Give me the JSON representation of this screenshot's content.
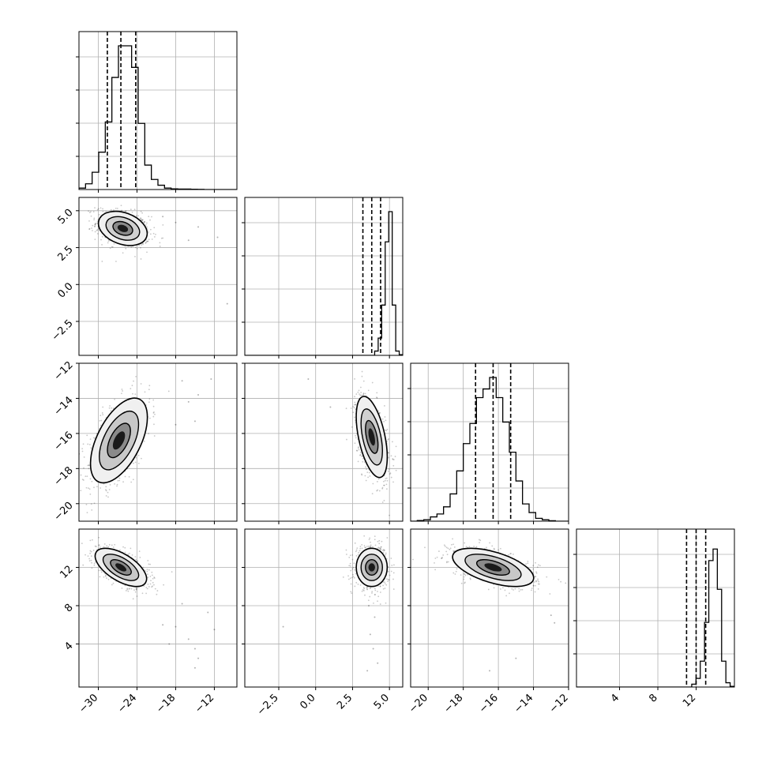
{
  "chart_data": {
    "type": "scatter",
    "title": "",
    "variables": [
      {
        "index": 0,
        "range": [
          -33,
          -8.5
        ],
        "xticks": [
          -30,
          -24,
          -18,
          -12
        ],
        "xtick_labels": [
          "−30",
          "−24",
          "−18",
          "−12"
        ],
        "quantiles": [
          -28.6,
          -26.5,
          -24.2
        ],
        "hist_counts": [
          1,
          4,
          12,
          26,
          47,
          78,
          100,
          100,
          85,
          46,
          17,
          7,
          3,
          1,
          0.5,
          0.3,
          0.3,
          0.2,
          0.1,
          0,
          0,
          0,
          0,
          0
        ]
      },
      {
        "index": 1,
        "range": [
          -4.8,
          5.9
        ],
        "xticks": [
          -2.5,
          0.0,
          2.5,
          5.0
        ],
        "xtick_labels": [
          "−2.5",
          "0.0",
          "2.5",
          "5.0"
        ],
        "yticks": [
          5.0,
          2.5,
          0.0,
          -2.5
        ],
        "ytick_labels": [
          "5.0",
          "2.5",
          "0.0",
          "−2.5"
        ],
        "quantiles": [
          3.2,
          3.8,
          4.4
        ],
        "hist_counts": [
          0,
          0,
          0,
          0,
          0,
          0,
          0,
          0,
          0,
          0,
          0,
          0,
          0,
          0,
          0,
          0,
          0,
          0,
          0,
          0,
          0,
          0,
          0,
          0,
          0,
          0,
          0,
          0,
          0,
          0,
          0,
          0,
          0,
          0,
          0,
          0,
          0,
          3,
          12,
          35,
          79,
          100,
          35,
          3,
          0.5
        ]
      },
      {
        "index": 2,
        "range": [
          -21,
          -12
        ],
        "xticks": [
          -20,
          -18,
          -16,
          -14,
          -12
        ],
        "xtick_labels": [
          "−20",
          "−18",
          "−16",
          "−14",
          "−12"
        ],
        "yticks": [
          -12,
          -14,
          -16,
          -18,
          -20
        ],
        "ytick_labels": [
          "−12",
          "−14",
          "−16",
          "−18",
          "−20"
        ],
        "quantiles": [
          -17.3,
          -16.3,
          -15.3
        ],
        "hist_counts": [
          0,
          0.5,
          1,
          3,
          5,
          10,
          19,
          35,
          54,
          68,
          86,
          92,
          100,
          86,
          69,
          48,
          28,
          12,
          6,
          2,
          1,
          0.3,
          0,
          0
        ]
      },
      {
        "index": 3,
        "range": [
          -0.5,
          16
        ],
        "xticks": [
          4,
          8,
          12
        ],
        "xtick_labels": [
          "4",
          "8",
          "12"
        ],
        "yticks": [
          12,
          8,
          4
        ],
        "ytick_labels": [
          "12",
          "8",
          "4"
        ],
        "quantiles": [
          11.0,
          12.0,
          13.0
        ],
        "hist_counts": [
          0,
          0,
          0,
          0,
          0,
          0,
          0,
          0,
          0,
          0,
          0,
          0,
          0,
          0,
          0,
          0,
          0,
          0,
          0,
          0,
          0,
          0,
          0,
          0,
          0,
          0,
          0,
          2,
          6,
          18,
          45,
          88,
          96,
          68,
          18,
          3,
          0.5
        ]
      }
    ],
    "pairs": [
      {
        "x": 0,
        "y": 1,
        "mean": [
          -26.2,
          3.8
        ],
        "sd": [
          1.8,
          0.55
        ],
        "rho": -0.3,
        "grey": 0,
        "outliers": [
          [
            -18,
            4.2
          ],
          [
            -14.5,
            3.9
          ],
          [
            -11.5,
            3.2
          ],
          [
            -20,
            4.6
          ],
          [
            -16,
            3.0
          ],
          [
            -10,
            -1.3
          ]
        ]
      },
      {
        "x": 0,
        "y": 2,
        "mean": [
          -26.8,
          -16.4
        ],
        "sd": [
          2.1,
          1.15
        ],
        "rho": 0.55,
        "grey": 1,
        "outliers": [
          [
            -17,
            -13
          ],
          [
            -16,
            -14.2
          ],
          [
            -14.5,
            -13.8
          ],
          [
            -12.5,
            -12.9
          ],
          [
            -18,
            -15.5
          ],
          [
            -15,
            -15.3
          ]
        ]
      },
      {
        "x": 1,
        "y": 2,
        "mean": [
          3.8,
          -16.2
        ],
        "sd": [
          0.5,
          1.1
        ],
        "rho": -0.5,
        "grey": 0,
        "outliers": [
          [
            -0.5,
            -12.9
          ],
          [
            1,
            -14.5
          ]
        ]
      },
      {
        "x": 0,
        "y": 3,
        "mean": [
          -26.5,
          12.0
        ],
        "sd": [
          1.9,
          0.95
        ],
        "rho": -0.6,
        "grey": 1,
        "outliers": [
          [
            -20,
            6
          ],
          [
            -18,
            5.8
          ],
          [
            -16,
            4.5
          ],
          [
            -15,
            3.5
          ],
          [
            -14.5,
            2.5
          ],
          [
            -17,
            8.2
          ],
          [
            -13,
            7.3
          ],
          [
            -12,
            5.5
          ],
          [
            -19,
            4
          ],
          [
            -15,
            1.5
          ]
        ]
      },
      {
        "x": 1,
        "y": 3,
        "mean": [
          3.8,
          12.0
        ],
        "sd": [
          0.5,
          0.95
        ],
        "rho": 0.0,
        "grey": 1,
        "outliers": [
          [
            3.7,
            5
          ],
          [
            3.9,
            3.5
          ],
          [
            4.2,
            2
          ],
          [
            3.5,
            1.2
          ],
          [
            -2.2,
            5.8
          ],
          [
            4.0,
            6.8
          ],
          [
            3.6,
            8
          ]
        ]
      },
      {
        "x": 2,
        "y": 3,
        "mean": [
          -16.3,
          12.0
        ],
        "sd": [
          1.1,
          0.95
        ],
        "rho": -0.55,
        "grey": 1,
        "outliers": [
          [
            -13,
            7
          ],
          [
            -12.8,
            6.2
          ],
          [
            -16.5,
            1.2
          ],
          [
            -15,
            2.5
          ]
        ]
      }
    ]
  }
}
